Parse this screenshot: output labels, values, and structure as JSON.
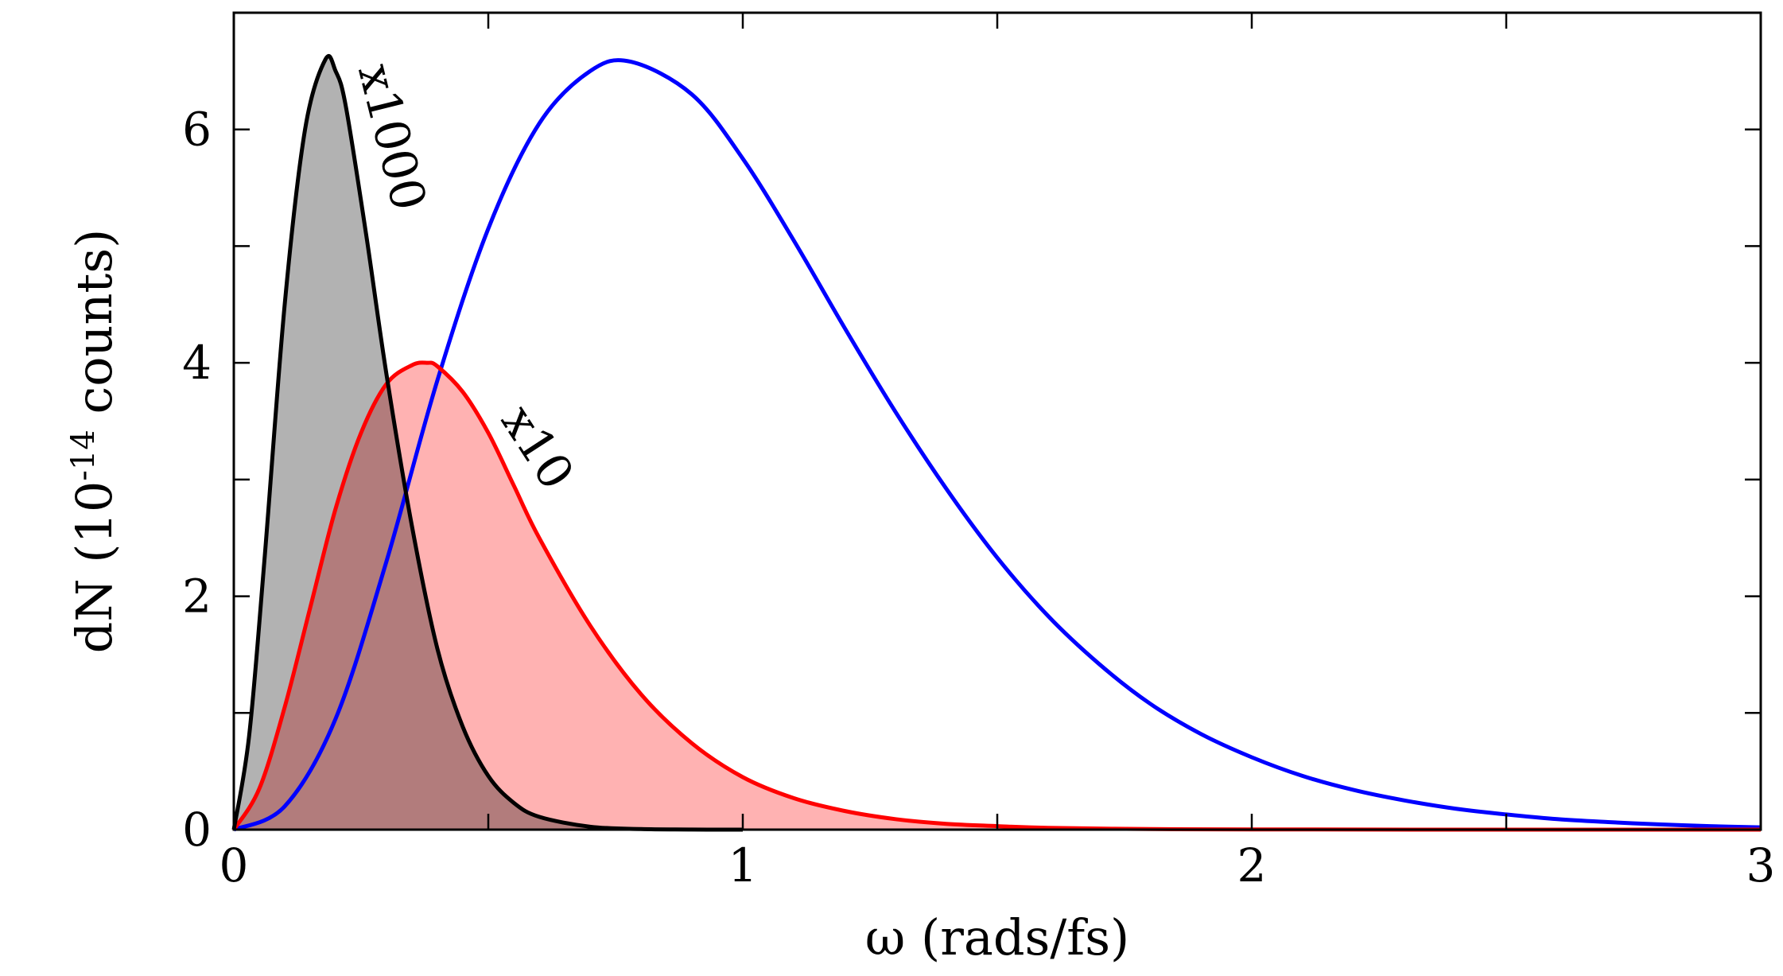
{
  "chart_data": {
    "type": "area",
    "xlabel": "ω (rads/fs)",
    "ylabel": {
      "main": "dN (10",
      "sup": "-14",
      "tail": " counts)"
    },
    "xlim": [
      0,
      3
    ],
    "ylim": [
      0,
      7
    ],
    "xticks": [
      0,
      0.5,
      1,
      1.5,
      2,
      2.5,
      3
    ],
    "xtick_labels": [
      "0",
      "",
      "1",
      "",
      "2",
      "",
      "3"
    ],
    "yticks": [
      0,
      1,
      2,
      3,
      4,
      5,
      6
    ],
    "ytick_labels": [
      "0",
      "",
      "2",
      "",
      "4",
      "",
      "6"
    ],
    "grid": false,
    "series": [
      {
        "color": "#0000ff",
        "fill": null,
        "x": [
          0,
          0.1,
          0.2,
          0.3,
          0.4,
          0.5,
          0.6,
          0.7,
          0.78,
          0.9,
          1.0,
          1.1,
          1.2,
          1.3,
          1.4,
          1.5,
          1.6,
          1.7,
          1.8,
          1.9,
          2.0,
          2.1,
          2.2,
          2.3,
          2.4,
          2.5,
          2.6,
          2.7,
          2.8,
          2.9,
          3.0
        ],
        "y": [
          0,
          0.2,
          0.95,
          2.3,
          3.85,
          5.15,
          6.05,
          6.5,
          6.58,
          6.3,
          5.75,
          5.05,
          4.3,
          3.58,
          2.92,
          2.33,
          1.83,
          1.42,
          1.08,
          0.82,
          0.62,
          0.46,
          0.34,
          0.25,
          0.18,
          0.13,
          0.09,
          0.065,
          0.045,
          0.03,
          0.02
        ]
      },
      {
        "color": "#ff0000",
        "fill": "#ff0000",
        "annotation": "x10",
        "x": [
          0,
          0.05,
          0.1,
          0.15,
          0.2,
          0.25,
          0.3,
          0.35,
          0.38,
          0.4,
          0.45,
          0.5,
          0.55,
          0.6,
          0.7,
          0.8,
          0.9,
          1.0,
          1.1,
          1.2,
          1.3,
          1.4,
          1.5,
          1.6,
          1.8,
          2.0,
          2.5,
          3.0
        ],
        "y": [
          0,
          0.35,
          1.05,
          1.9,
          2.75,
          3.4,
          3.82,
          3.98,
          4.0,
          3.97,
          3.75,
          3.4,
          2.95,
          2.5,
          1.75,
          1.16,
          0.74,
          0.45,
          0.27,
          0.16,
          0.09,
          0.05,
          0.03,
          0.015,
          0.005,
          0.002,
          0.0,
          0.0
        ]
      },
      {
        "color": "#000000",
        "fill": "#000000",
        "annotation": "x1000",
        "x": [
          0,
          0.03,
          0.06,
          0.1,
          0.14,
          0.18,
          0.2,
          0.22,
          0.26,
          0.3,
          0.35,
          0.4,
          0.45,
          0.5,
          0.55,
          0.6,
          0.7,
          0.8,
          0.9,
          1.0
        ],
        "y": [
          0,
          0.8,
          2.3,
          4.5,
          6.0,
          6.6,
          6.5,
          6.2,
          5.1,
          3.9,
          2.6,
          1.55,
          0.88,
          0.46,
          0.23,
          0.11,
          0.025,
          0.005,
          0.001,
          0.0
        ]
      }
    ]
  }
}
